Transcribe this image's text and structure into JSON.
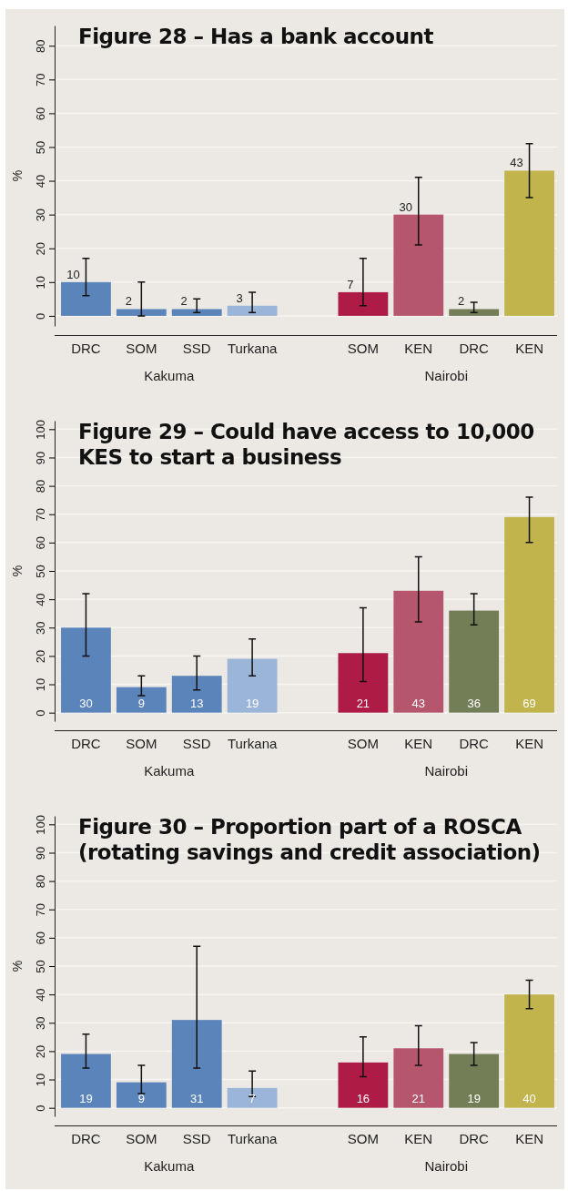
{
  "chart_data": [
    {
      "type": "bar",
      "title": "Figure 28 – Has a bank account",
      "ylabel": "%",
      "categories": [
        "DRC",
        "SOM",
        "SSD",
        "Turkana",
        null,
        "SOM",
        "KEN",
        "DRC",
        "KEN"
      ],
      "values": [
        10,
        2,
        2,
        3,
        null,
        7,
        30,
        2,
        43
      ],
      "colors": [
        "#5b84bb",
        "#5b84bb",
        "#5b84bb",
        "#9bb5d8",
        null,
        "#ae1c45",
        "#b5566d",
        "#737d56",
        "#c1b44c"
      ],
      "errors": [
        [
          6,
          17
        ],
        [
          0,
          10
        ],
        [
          1,
          5
        ],
        [
          1,
          7
        ],
        null,
        [
          3,
          17
        ],
        [
          21,
          41
        ],
        [
          1,
          4
        ],
        [
          35,
          51
        ]
      ],
      "annotations": [
        "Kakuma",
        "Nairobi"
      ],
      "data_labels": true,
      "ylim": [
        -3,
        86
      ],
      "yticks": [
        0,
        10,
        20,
        30,
        40,
        50,
        60,
        70,
        80
      ],
      "grid": "y"
    },
    {
      "type": "bar",
      "title": "Figure 29 – Could have access to 10,000 KES to start a business",
      "ylabel": "%",
      "categories": [
        "DRC",
        "SOM",
        "SSD",
        "Turkana",
        null,
        "SOM",
        "KEN",
        "DRC",
        "KEN"
      ],
      "values": [
        30,
        9,
        13,
        19,
        null,
        21,
        43,
        36,
        69
      ],
      "colors": [
        "#5b84bb",
        "#5b84bb",
        "#5b84bb",
        "#9bb5d8",
        null,
        "#ae1c45",
        "#b5566d",
        "#737d56",
        "#c1b44c"
      ],
      "errors": [
        [
          20,
          42
        ],
        [
          6,
          13
        ],
        [
          8,
          20
        ],
        [
          13,
          26
        ],
        null,
        [
          11,
          37
        ],
        [
          32,
          55
        ],
        [
          31,
          42
        ],
        [
          60,
          76
        ]
      ],
      "annotations": [
        "Kakuma",
        "Nairobi"
      ],
      "data_labels": true,
      "ylim": [
        -3,
        103
      ],
      "yticks": [
        0,
        10,
        20,
        30,
        40,
        50,
        60,
        70,
        80,
        90,
        100
      ],
      "grid": "y"
    },
    {
      "type": "bar",
      "title": "Figure 30 – Proportion part of a ROSCA (rotating savings and credit association)",
      "ylabel": "%",
      "categories": [
        "DRC",
        "SOM",
        "SSD",
        "Turkana",
        null,
        "SOM",
        "KEN",
        "DRC",
        "KEN"
      ],
      "values": [
        19,
        9,
        31,
        7,
        null,
        16,
        21,
        19,
        40
      ],
      "colors": [
        "#5b84bb",
        "#5b84bb",
        "#5b84bb",
        "#9bb5d8",
        null,
        "#ae1c45",
        "#b5566d",
        "#737d56",
        "#c1b44c"
      ],
      "errors": [
        [
          14,
          26
        ],
        [
          5,
          15
        ],
        [
          14,
          57
        ],
        [
          4,
          13
        ],
        null,
        [
          11,
          25
        ],
        [
          15,
          29
        ],
        [
          15,
          23
        ],
        [
          35,
          45
        ]
      ],
      "annotations": [
        "Kakuma",
        "Nairobi"
      ],
      "data_labels": true,
      "ylim": [
        -3,
        103
      ],
      "yticks": [
        0,
        10,
        20,
        30,
        40,
        50,
        60,
        70,
        80,
        90,
        100
      ],
      "grid": "y"
    }
  ]
}
